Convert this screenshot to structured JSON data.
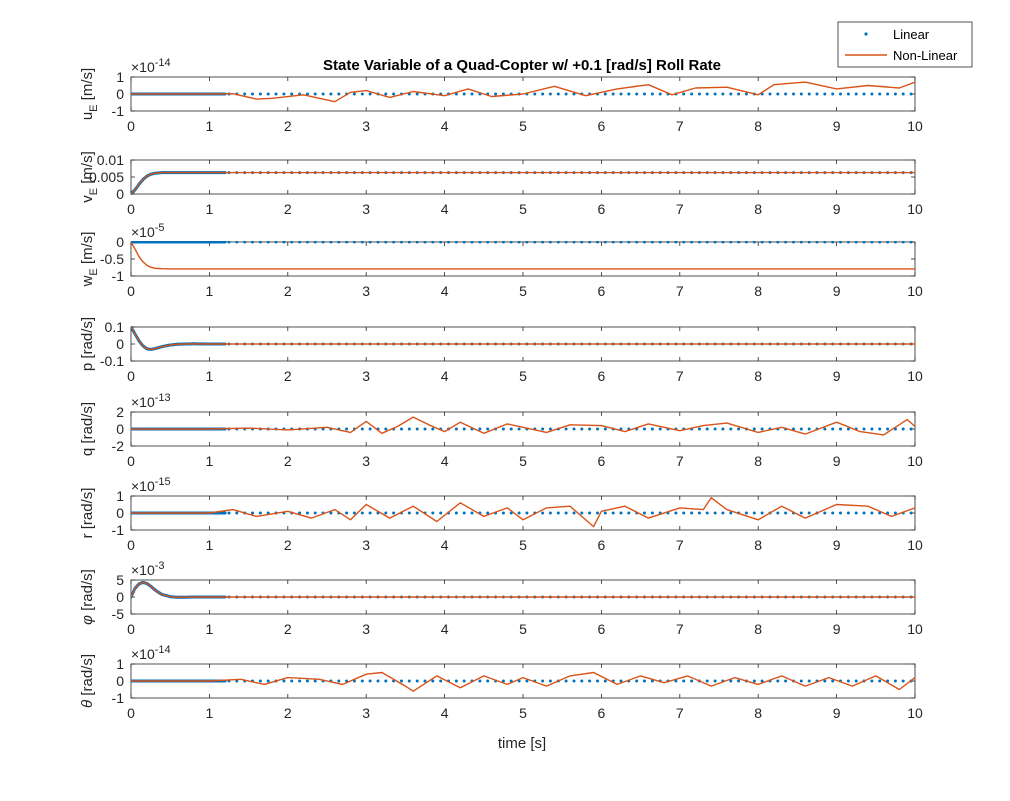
{
  "figure": {
    "title": "State Variable of a Quad-Copter w/ +0.1 [rad/s] Roll Rate",
    "xlabel": "time [s]",
    "legend": {
      "placement": "top-right (outside)",
      "entries": [
        {
          "label": "Linear",
          "marker": "dot",
          "color": "#0072BD"
        },
        {
          "label": "Non-Linear",
          "marker": "line",
          "color": "#D95319"
        }
      ]
    }
  },
  "chart_data": [
    {
      "type": "line",
      "ylabel": "u_E [m/s]",
      "ylabel_parts": {
        "main": "u",
        "sub": "E",
        "unit": " [m/s]",
        "italic": false
      },
      "exponent": "-14",
      "ylim": [
        -1,
        1
      ],
      "yticks": [
        "-1",
        "0",
        "1"
      ],
      "xlim": [
        0,
        10
      ],
      "xticks": [
        "0",
        "1",
        "2",
        "3",
        "4",
        "5",
        "6",
        "7",
        "8",
        "9",
        "10"
      ],
      "series": [
        {
          "name": "Linear",
          "x": [
            0,
            10
          ],
          "values": [
            0,
            0
          ]
        },
        {
          "name": "Non-Linear",
          "x": [
            0,
            0.5,
            1.0,
            1.3,
            1.6,
            1.8,
            2.2,
            2.6,
            2.8,
            3.0,
            3.3,
            3.6,
            4.0,
            4.3,
            4.6,
            5.0,
            5.4,
            5.8,
            6.2,
            6.6,
            6.9,
            7.2,
            7.6,
            8.0,
            8.2,
            8.6,
            9.0,
            9.4,
            9.8,
            10.0
          ],
          "values": [
            0,
            0,
            0,
            0.02,
            -0.3,
            -0.25,
            -0.05,
            -0.45,
            0.1,
            0.2,
            -0.2,
            0.15,
            -0.1,
            0.3,
            -0.15,
            0.0,
            0.45,
            -0.1,
            0.3,
            0.55,
            -0.05,
            0.35,
            0.4,
            -0.05,
            0.55,
            0.7,
            0.3,
            0.5,
            0.35,
            0.7
          ]
        }
      ]
    },
    {
      "type": "line",
      "ylabel": "v_E [m/s]",
      "ylabel_parts": {
        "main": "v",
        "sub": "E",
        "unit": " [m/s]",
        "italic": false
      },
      "exponent": "",
      "ylim": [
        0,
        0.01
      ],
      "yticks": [
        "0",
        "0.005",
        "0.01"
      ],
      "xlim": [
        0,
        10
      ],
      "xticks": [
        "0",
        "1",
        "2",
        "3",
        "4",
        "5",
        "6",
        "7",
        "8",
        "9",
        "10"
      ],
      "series": [
        {
          "name": "Linear",
          "x": [
            0,
            0.05,
            0.1,
            0.15,
            0.2,
            0.25,
            0.3,
            0.35,
            0.4,
            0.5,
            0.6,
            1.0,
            10.0
          ],
          "values": [
            0,
            0.0012,
            0.0028,
            0.0042,
            0.0052,
            0.0058,
            0.0061,
            0.0062,
            0.0063,
            0.0063,
            0.0063,
            0.0063,
            0.0063
          ]
        },
        {
          "name": "Non-Linear",
          "x": [
            0,
            0.05,
            0.1,
            0.15,
            0.2,
            0.25,
            0.3,
            0.35,
            0.4,
            0.5,
            0.6,
            1.0,
            10.0
          ],
          "values": [
            0,
            0.0012,
            0.0028,
            0.0042,
            0.0052,
            0.0058,
            0.0061,
            0.0062,
            0.0063,
            0.0063,
            0.0063,
            0.0063,
            0.0063
          ]
        }
      ]
    },
    {
      "type": "line",
      "ylabel": "w_E [m/s]",
      "ylabel_parts": {
        "main": "w",
        "sub": "E",
        "unit": " [m/s]",
        "italic": false
      },
      "exponent": "-5",
      "ylim": [
        -1,
        0
      ],
      "yticks": [
        "-1",
        "-0.5",
        "0"
      ],
      "xlim": [
        0,
        10
      ],
      "xticks": [
        "0",
        "1",
        "2",
        "3",
        "4",
        "5",
        "6",
        "7",
        "8",
        "9",
        "10"
      ],
      "series": [
        {
          "name": "Linear",
          "x": [
            0,
            10
          ],
          "values": [
            0,
            0
          ]
        },
        {
          "name": "Non-Linear",
          "x": [
            0,
            0.05,
            0.1,
            0.15,
            0.2,
            0.25,
            0.3,
            0.35,
            0.4,
            0.5,
            1.0,
            10.0
          ],
          "values": [
            0,
            -0.2,
            -0.42,
            -0.58,
            -0.68,
            -0.74,
            -0.77,
            -0.78,
            -0.785,
            -0.79,
            -0.79,
            -0.79
          ]
        }
      ]
    },
    {
      "type": "line",
      "ylabel": "p [rad/s]",
      "ylabel_parts": {
        "main": "p",
        "sub": "",
        "unit": " [rad/s]",
        "italic": false
      },
      "exponent": "",
      "ylim": [
        -0.1,
        0.1
      ],
      "yticks": [
        "-0.1",
        "0",
        "0.1"
      ],
      "xlim": [
        0,
        10
      ],
      "xticks": [
        "0",
        "1",
        "2",
        "3",
        "4",
        "5",
        "6",
        "7",
        "8",
        "9",
        "10"
      ],
      "series": [
        {
          "name": "Linear",
          "x": [
            0,
            0.05,
            0.1,
            0.15,
            0.2,
            0.25,
            0.3,
            0.4,
            0.5,
            0.6,
            0.8,
            1.0,
            10.0
          ],
          "values": [
            0.1,
            0.06,
            0.02,
            -0.01,
            -0.028,
            -0.032,
            -0.028,
            -0.015,
            -0.006,
            -0.001,
            0.001,
            0,
            0
          ]
        },
        {
          "name": "Non-Linear",
          "x": [
            0,
            0.05,
            0.1,
            0.15,
            0.2,
            0.25,
            0.3,
            0.4,
            0.5,
            0.6,
            0.8,
            1.0,
            10.0
          ],
          "values": [
            0.1,
            0.06,
            0.02,
            -0.01,
            -0.028,
            -0.032,
            -0.028,
            -0.015,
            -0.006,
            -0.001,
            0.001,
            0,
            0
          ]
        }
      ]
    },
    {
      "type": "line",
      "ylabel": "q [rad/s]",
      "ylabel_parts": {
        "main": "q",
        "sub": "",
        "unit": " [rad/s]",
        "italic": false
      },
      "exponent": "-13",
      "ylim": [
        -2,
        2
      ],
      "yticks": [
        "-2",
        "0",
        "2"
      ],
      "xlim": [
        0,
        10
      ],
      "xticks": [
        "0",
        "1",
        "2",
        "3",
        "4",
        "5",
        "6",
        "7",
        "8",
        "9",
        "10"
      ],
      "series": [
        {
          "name": "Linear",
          "x": [
            0,
            10
          ],
          "values": [
            0,
            0
          ]
        },
        {
          "name": "Non-Linear",
          "x": [
            0,
            1.0,
            1.5,
            2.0,
            2.5,
            2.8,
            3.0,
            3.2,
            3.4,
            3.6,
            3.8,
            4.0,
            4.2,
            4.5,
            4.8,
            5.0,
            5.3,
            5.6,
            6.0,
            6.3,
            6.6,
            7.0,
            7.3,
            7.6,
            8.0,
            8.3,
            8.6,
            9.0,
            9.3,
            9.6,
            9.9,
            10.0
          ],
          "values": [
            0,
            0,
            0.1,
            -0.1,
            0.2,
            -0.4,
            0.9,
            -0.5,
            0.3,
            1.4,
            0.5,
            -0.3,
            0.8,
            -0.5,
            0.6,
            0.2,
            -0.4,
            0.5,
            0.4,
            -0.3,
            0.6,
            -0.2,
            0.4,
            0.7,
            -0.4,
            0.2,
            -0.6,
            0.8,
            -0.3,
            -0.7,
            1.1,
            0.3
          ]
        }
      ]
    },
    {
      "type": "line",
      "ylabel": "r [rad/s]",
      "ylabel_parts": {
        "main": "r",
        "sub": "",
        "unit": " [rad/s]",
        "italic": false
      },
      "exponent": "-15",
      "ylim": [
        -1,
        1
      ],
      "yticks": [
        "-1",
        "0",
        "1"
      ],
      "xlim": [
        0,
        10
      ],
      "xticks": [
        "0",
        "1",
        "2",
        "3",
        "4",
        "5",
        "6",
        "7",
        "8",
        "9",
        "10"
      ],
      "series": [
        {
          "name": "Linear",
          "x": [
            0,
            10
          ],
          "values": [
            0,
            0
          ]
        },
        {
          "name": "Non-Linear",
          "x": [
            0,
            1.0,
            1.3,
            1.6,
            2.0,
            2.3,
            2.6,
            2.8,
            3.0,
            3.3,
            3.6,
            3.9,
            4.2,
            4.5,
            4.8,
            5.0,
            5.3,
            5.6,
            5.9,
            6.0,
            6.3,
            6.6,
            7.0,
            7.3,
            7.4,
            7.6,
            8.0,
            8.3,
            8.6,
            9.0,
            9.4,
            9.7,
            10.0
          ],
          "values": [
            0,
            0,
            0.2,
            -0.2,
            0.1,
            -0.3,
            0.2,
            -0.4,
            0.5,
            -0.3,
            0.4,
            -0.5,
            0.6,
            -0.2,
            0.3,
            -0.4,
            0.3,
            0.4,
            -0.8,
            0.1,
            0.4,
            -0.3,
            0.3,
            0.2,
            0.9,
            0.2,
            -0.4,
            0.4,
            -0.3,
            0.5,
            0.4,
            -0.2,
            0.3
          ]
        }
      ]
    },
    {
      "type": "line",
      "ylabel": "φ [rad/s]",
      "ylabel_parts": {
        "main": "φ",
        "sub": "",
        "unit": " [rad/s]",
        "italic": true
      },
      "exponent": "-3",
      "ylim": [
        -5,
        5
      ],
      "yticks": [
        "-5",
        "0",
        "5"
      ],
      "xlim": [
        0,
        10
      ],
      "xticks": [
        "0",
        "1",
        "2",
        "3",
        "4",
        "5",
        "6",
        "7",
        "8",
        "9",
        "10"
      ],
      "series": [
        {
          "name": "Linear",
          "x": [
            0,
            0.05,
            0.1,
            0.15,
            0.2,
            0.25,
            0.3,
            0.35,
            0.4,
            0.5,
            0.6,
            0.8,
            1.0,
            10.0
          ],
          "values": [
            0,
            2.5,
            3.8,
            4.3,
            4.0,
            3.2,
            2.2,
            1.4,
            0.7,
            0.1,
            -0.1,
            0,
            0,
            0
          ]
        },
        {
          "name": "Non-Linear",
          "x": [
            0,
            0.05,
            0.1,
            0.15,
            0.2,
            0.25,
            0.3,
            0.35,
            0.4,
            0.5,
            0.6,
            0.8,
            1.0,
            10.0
          ],
          "values": [
            0,
            2.5,
            3.8,
            4.3,
            4.0,
            3.2,
            2.2,
            1.4,
            0.7,
            0.1,
            -0.1,
            0,
            0,
            0
          ]
        }
      ]
    },
    {
      "type": "line",
      "ylabel": "θ [rad/s]",
      "ylabel_parts": {
        "main": "θ",
        "sub": "",
        "unit": " [rad/s]",
        "italic": true
      },
      "exponent": "-14",
      "ylim": [
        -1,
        1
      ],
      "yticks": [
        "-1",
        "0",
        "1"
      ],
      "xlim": [
        0,
        10
      ],
      "xticks": [
        "0",
        "1",
        "2",
        "3",
        "4",
        "5",
        "6",
        "7",
        "8",
        "9",
        "10"
      ],
      "series": [
        {
          "name": "Linear",
          "x": [
            0,
            10
          ],
          "values": [
            0,
            0
          ]
        },
        {
          "name": "Non-Linear",
          "x": [
            0,
            1.0,
            1.4,
            1.7,
            2.0,
            2.4,
            2.7,
            3.0,
            3.2,
            3.5,
            3.6,
            3.9,
            4.2,
            4.5,
            4.8,
            5.0,
            5.3,
            5.6,
            5.9,
            6.2,
            6.5,
            6.8,
            7.1,
            7.4,
            7.7,
            8.0,
            8.3,
            8.6,
            8.9,
            9.2,
            9.5,
            9.8,
            10.0
          ],
          "values": [
            0,
            0,
            0.1,
            -0.2,
            0.2,
            0.1,
            -0.2,
            0.4,
            0.5,
            -0.3,
            -0.6,
            0.3,
            -0.4,
            0.3,
            -0.2,
            0.2,
            -0.3,
            0.3,
            0.5,
            -0.2,
            0.3,
            -0.1,
            0.3,
            -0.3,
            0.2,
            -0.2,
            0.3,
            -0.3,
            0.2,
            -0.3,
            0.3,
            -0.5,
            0.2
          ]
        }
      ]
    }
  ]
}
